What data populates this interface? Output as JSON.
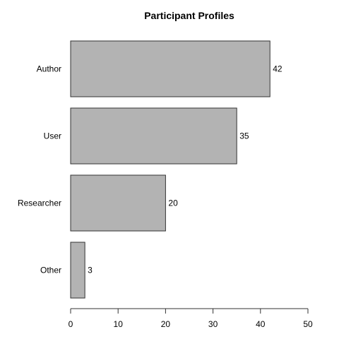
{
  "chart_data": {
    "type": "bar",
    "orientation": "horizontal",
    "title": "Participant Profiles",
    "xlabel": "",
    "ylabel": "",
    "categories": [
      "Author",
      "User",
      "Researcher",
      "Other"
    ],
    "values": [
      42,
      35,
      20,
      3
    ],
    "data_labels": [
      "42",
      "35",
      "20",
      "3"
    ],
    "xlim": [
      0,
      50
    ],
    "x_ticks": [
      0,
      10,
      20,
      30,
      40,
      50
    ],
    "x_tick_labels": [
      "0",
      "10",
      "20",
      "30",
      "40",
      "50"
    ],
    "grid": false,
    "legend": "none",
    "bar_fill": "#b3b3b3",
    "bar_stroke": "#333333",
    "axis_color": "#333333"
  }
}
